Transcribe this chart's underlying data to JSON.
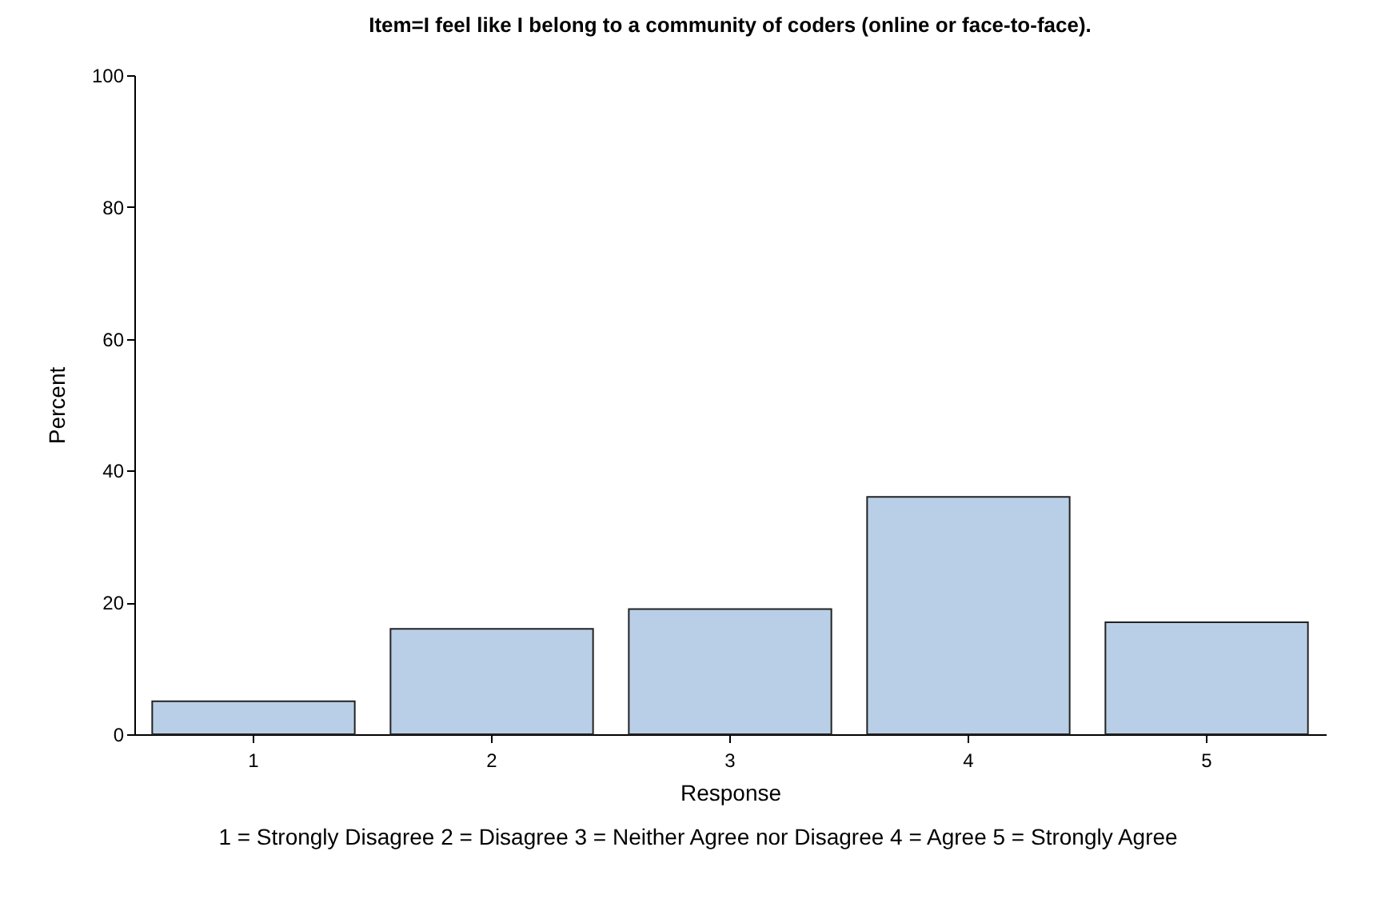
{
  "chart_data": {
    "type": "bar",
    "title": "Item=I feel like I belong to a community of coders (online or face-to-face).",
    "xlabel": "Response",
    "ylabel": "Percent",
    "categories": [
      "1",
      "2",
      "3",
      "4",
      "5"
    ],
    "values": [
      5,
      16,
      19,
      36,
      17
    ],
    "color": "#b9cfe7",
    "ylim": [
      0,
      100
    ],
    "yticks": [
      0,
      20,
      40,
      60,
      80,
      100
    ],
    "grid": false,
    "annotations": [
      "1 = Strongly Disagree 2 = Disagree 3 = Neither Agree nor Disagree 4 = Agree 5 = Strongly Agree"
    ]
  }
}
